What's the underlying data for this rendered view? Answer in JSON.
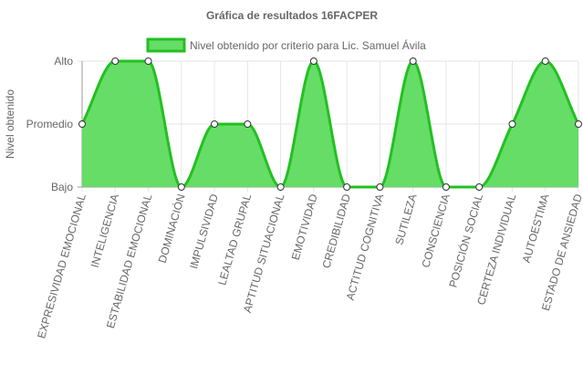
{
  "chart_data": {
    "type": "area",
    "title": "Gráfica de resultados 16FACPER",
    "ylabel": "Nivel obtenido",
    "xlabel": "",
    "y_levels": [
      "Bajo",
      "Promedio",
      "Alto"
    ],
    "categories": [
      "EXPRESIVIDAD EMOCIONAL",
      "INTELIGENCIA",
      "ESTABILIDAD EMOCIONAL",
      "DOMINACIÓN",
      "IMPULSIVIDAD",
      "LEALTAD GRUPAL",
      "APTITUD SITUACIONAL",
      "EMOTIVIDAD",
      "CREDIBILIDAD",
      "ACTITUD COGNITIVA",
      "SUTILEZA",
      "CONSCIENCIA",
      "POSICIÓN SOCIAL",
      "CERTEZA INDIVIDUAL",
      "AUTOESTIMA",
      "ESTADO DE ANSIEDAD"
    ],
    "series": [
      {
        "name": "Nivel obtenido por criterio para Lic. Samuel Ávila",
        "values": [
          1,
          2,
          2,
          0,
          1,
          1,
          0,
          2,
          0,
          0,
          2,
          0,
          0,
          1,
          2,
          1
        ],
        "value_labels": [
          "Promedio",
          "Alto",
          "Alto",
          "Bajo",
          "Promedio",
          "Promedio",
          "Bajo",
          "Alto",
          "Bajo",
          "Bajo",
          "Alto",
          "Bajo",
          "Bajo",
          "Promedio",
          "Alto",
          "Promedio"
        ]
      }
    ],
    "ylim": [
      0,
      2
    ],
    "grid": true,
    "legend": "top",
    "colors": {
      "fill": "#66dd66",
      "line": "#22c022",
      "point_fill": "#ffffff",
      "point_stroke": "#333333",
      "grid": "#e6e6e6",
      "axis": "#999999"
    }
  }
}
